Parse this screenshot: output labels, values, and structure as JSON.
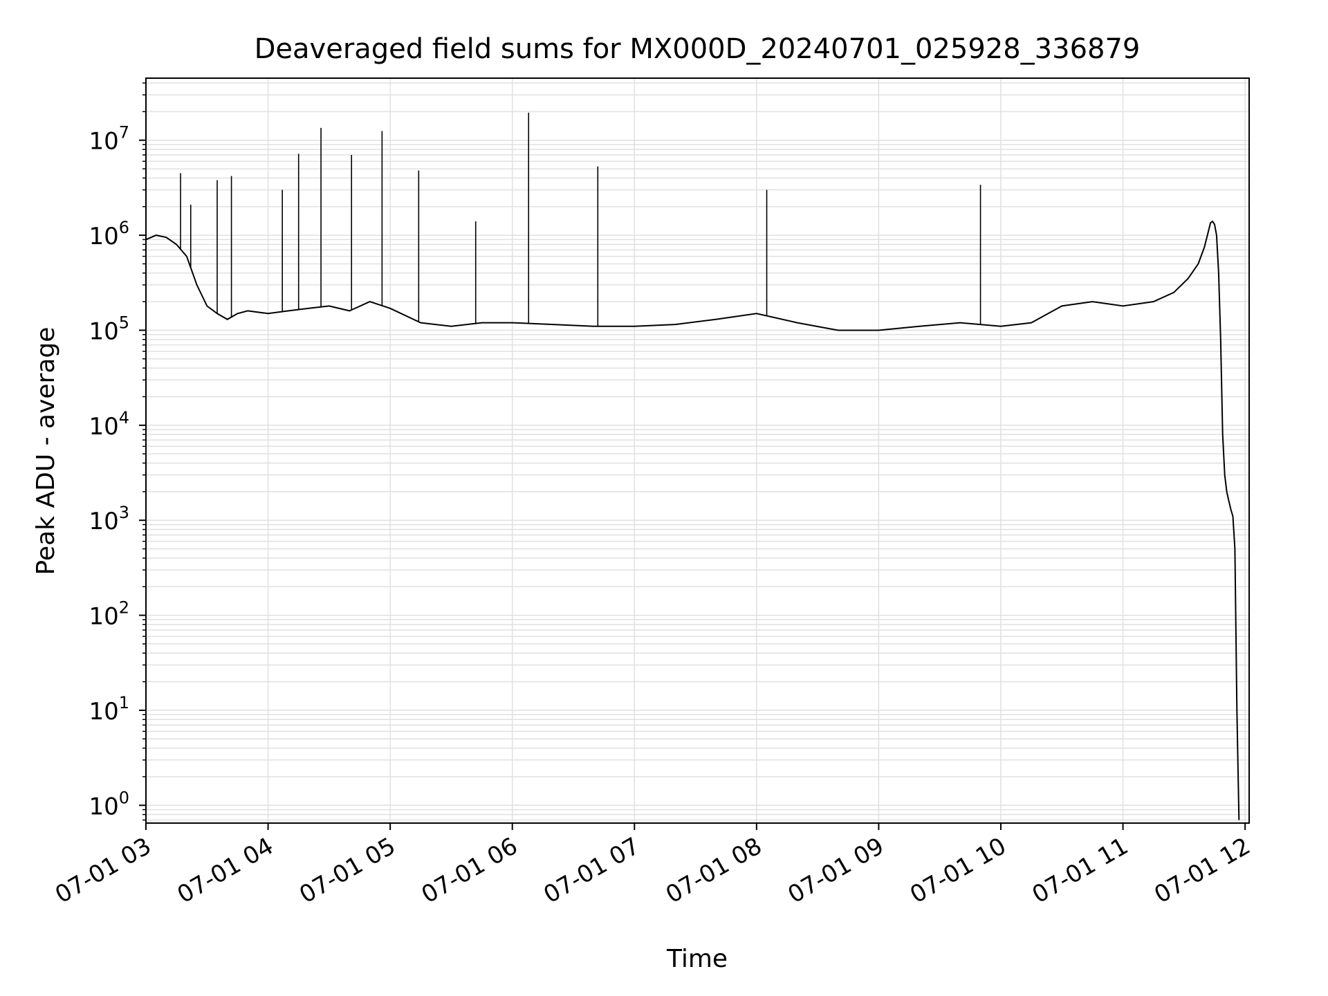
{
  "chart_data": {
    "type": "line",
    "title": "Deaveraged field sums for MX000D_20240701_025928_336879",
    "xlabel": "Time",
    "ylabel": "Peak ADU - average",
    "yscale": "log",
    "ylim": [
      0.65,
      45000000
    ],
    "xlim": [
      "2024-07-01 03:00",
      "2024-07-01 12:02"
    ],
    "grid": true,
    "line_color": "#000000",
    "grid_color": "#e0e0e0",
    "x_ticks": [
      {
        "value": "2024-07-01 03:00",
        "label": "07-01 03"
      },
      {
        "value": "2024-07-01 04:00",
        "label": "07-01 04"
      },
      {
        "value": "2024-07-01 05:00",
        "label": "07-01 05"
      },
      {
        "value": "2024-07-01 06:00",
        "label": "07-01 06"
      },
      {
        "value": "2024-07-01 07:00",
        "label": "07-01 07"
      },
      {
        "value": "2024-07-01 08:00",
        "label": "07-01 08"
      },
      {
        "value": "2024-07-01 09:00",
        "label": "07-01 09"
      },
      {
        "value": "2024-07-01 10:00",
        "label": "07-01 10"
      },
      {
        "value": "2024-07-01 11:00",
        "label": "07-01 11"
      },
      {
        "value": "2024-07-01 12:00",
        "label": "07-01 12"
      }
    ],
    "y_ticks": [
      {
        "value": 1,
        "base": "10",
        "exp": "0"
      },
      {
        "value": 10,
        "base": "10",
        "exp": "1"
      },
      {
        "value": 100,
        "base": "10",
        "exp": "2"
      },
      {
        "value": 1000,
        "base": "10",
        "exp": "3"
      },
      {
        "value": 10000,
        "base": "10",
        "exp": "4"
      },
      {
        "value": 100000,
        "base": "10",
        "exp": "5"
      },
      {
        "value": 1000000,
        "base": "10",
        "exp": "6"
      },
      {
        "value": 10000000,
        "base": "10",
        "exp": "7"
      }
    ],
    "series": [
      {
        "values": [
          [
            "2024-07-01 03:00",
            900000
          ],
          [
            "2024-07-01 03:05",
            1000000
          ],
          [
            "2024-07-01 03:10",
            950000
          ],
          [
            "2024-07-01 03:15",
            800000
          ],
          [
            "2024-07-01 03:20",
            600000
          ],
          [
            "2024-07-01 03:25",
            300000
          ],
          [
            "2024-07-01 03:30",
            180000
          ],
          [
            "2024-07-01 03:35",
            150000
          ],
          [
            "2024-07-01 03:40",
            130000
          ],
          [
            "2024-07-01 03:45",
            150000
          ],
          [
            "2024-07-01 03:50",
            160000
          ],
          [
            "2024-07-01 04:00",
            150000
          ],
          [
            "2024-07-01 04:10",
            160000
          ],
          [
            "2024-07-01 04:20",
            170000
          ],
          [
            "2024-07-01 04:30",
            180000
          ],
          [
            "2024-07-01 04:40",
            160000
          ],
          [
            "2024-07-01 04:50",
            200000
          ],
          [
            "2024-07-01 05:00",
            170000
          ],
          [
            "2024-07-01 05:15",
            120000
          ],
          [
            "2024-07-01 05:30",
            110000
          ],
          [
            "2024-07-01 05:45",
            120000
          ],
          [
            "2024-07-01 06:00",
            120000
          ],
          [
            "2024-07-01 06:20",
            115000
          ],
          [
            "2024-07-01 06:40",
            110000
          ],
          [
            "2024-07-01 07:00",
            110000
          ],
          [
            "2024-07-01 07:20",
            115000
          ],
          [
            "2024-07-01 07:40",
            130000
          ],
          [
            "2024-07-01 08:00",
            150000
          ],
          [
            "2024-07-01 08:20",
            120000
          ],
          [
            "2024-07-01 08:40",
            100000
          ],
          [
            "2024-07-01 09:00",
            100000
          ],
          [
            "2024-07-01 09:20",
            110000
          ],
          [
            "2024-07-01 09:40",
            120000
          ],
          [
            "2024-07-01 10:00",
            110000
          ],
          [
            "2024-07-01 10:15",
            120000
          ],
          [
            "2024-07-01 10:30",
            180000
          ],
          [
            "2024-07-01 10:45",
            200000
          ],
          [
            "2024-07-01 11:00",
            180000
          ],
          [
            "2024-07-01 11:15",
            200000
          ],
          [
            "2024-07-01 11:25",
            250000
          ],
          [
            "2024-07-01 11:32",
            350000
          ],
          [
            "2024-07-01 11:37",
            500000
          ],
          [
            "2024-07-01 11:40",
            750000
          ],
          [
            "2024-07-01 11:42",
            1100000
          ],
          [
            "2024-07-01 11:43",
            1350000
          ],
          [
            "2024-07-01 11:44",
            1400000
          ],
          [
            "2024-07-01 11:45",
            1300000
          ],
          [
            "2024-07-01 11:46",
            1000000
          ],
          [
            "2024-07-01 11:47",
            400000
          ],
          [
            "2024-07-01 11:48",
            80000
          ],
          [
            "2024-07-01 11:49",
            8000
          ],
          [
            "2024-07-01 11:50",
            3000
          ],
          [
            "2024-07-01 11:51",
            2000
          ],
          [
            "2024-07-01 11:52",
            1600
          ],
          [
            "2024-07-01 11:53",
            1300
          ],
          [
            "2024-07-01 11:54",
            1100
          ],
          [
            "2024-07-01 11:55",
            500
          ],
          [
            "2024-07-01 11:56",
            10
          ],
          [
            "2024-07-01 11:57",
            0.7
          ]
        ]
      }
    ],
    "spikes": [
      [
        "2024-07-01 03:17",
        4500000
      ],
      [
        "2024-07-01 03:22",
        2100000
      ],
      [
        "2024-07-01 03:35",
        3800000
      ],
      [
        "2024-07-01 03:42",
        4200000
      ],
      [
        "2024-07-01 04:07",
        3000000
      ],
      [
        "2024-07-01 04:15",
        7200000
      ],
      [
        "2024-07-01 04:26",
        13500000
      ],
      [
        "2024-07-01 04:41",
        7000000
      ],
      [
        "2024-07-01 04:56",
        12500000
      ],
      [
        "2024-07-01 05:14",
        4800000
      ],
      [
        "2024-07-01 05:42",
        1400000
      ],
      [
        "2024-07-01 06:08",
        19500000
      ],
      [
        "2024-07-01 06:42",
        5300000
      ],
      [
        "2024-07-01 08:05",
        3000000
      ],
      [
        "2024-07-01 09:50",
        3400000
      ]
    ]
  }
}
